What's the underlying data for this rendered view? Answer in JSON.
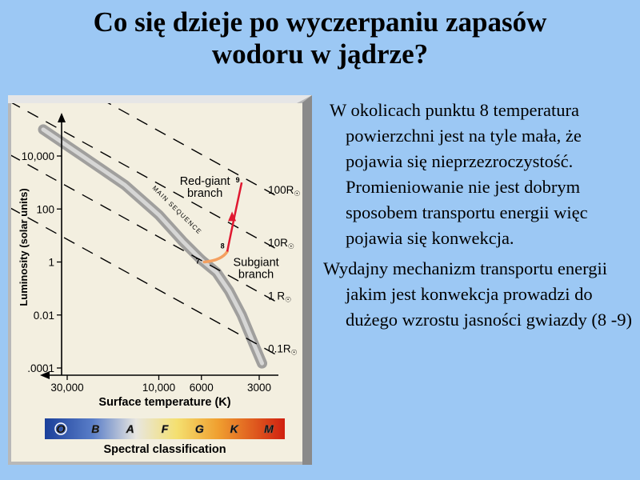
{
  "slide": {
    "title_line1": "Co się dzieje po wyczerpaniu zapasów",
    "title_line2": "wodoru w jądrze?",
    "paragraphs": [
      "W okolicach punktu 8 temperatura powierzchni jest na tyle mała, że pojawia się nieprzezroczystość. Promieniowanie nie jest dobrym sposobem transportu energii więc pojawia się konwekcja.",
      "Wydajny mechanizm transportu energii jakim jest konwekcja prowadzi do dużego wzrostu jasności gwiazdy (8 -9)"
    ]
  },
  "chart_data": {
    "type": "scatter",
    "ylabel": "Luminosity (solar units)",
    "xlabel": "Surface temperature (K)",
    "x_ticks": [
      "30,000",
      "10,000",
      "6000",
      "3000"
    ],
    "x_tick_values": [
      30000,
      10000,
      6000,
      3000
    ],
    "y_ticks": [
      "10,000",
      "100",
      "1",
      "0.01",
      ".0001"
    ],
    "y_tick_values": [
      10000,
      100,
      1,
      0.01,
      0.0001
    ],
    "x_axis": "reversed log",
    "y_axis": "log",
    "radius_lines": [
      {
        "label": "100R",
        "radius": 100
      },
      {
        "label": "10R",
        "radius": 10
      },
      {
        "label": "1 R",
        "radius": 1
      },
      {
        "label": "0.1R",
        "radius": 0.1
      }
    ],
    "radius_symbol": "☉",
    "main_sequence_label": "MAIN SEQUENCE",
    "main_sequence": [
      {
        "t": 40000,
        "l": 100000
      },
      {
        "t": 25000,
        "l": 10000
      },
      {
        "t": 15000,
        "l": 800
      },
      {
        "t": 10000,
        "l": 60
      },
      {
        "t": 7500,
        "l": 6
      },
      {
        "t": 6000,
        "l": 1.2
      },
      {
        "t": 5000,
        "l": 0.4
      },
      {
        "t": 4300,
        "l": 0.08
      },
      {
        "t": 3700,
        "l": 0.01
      },
      {
        "t": 3200,
        "l": 0.0008
      },
      {
        "t": 2900,
        "l": 0.00015
      }
    ],
    "track": {
      "points": [
        {
          "label": "7",
          "t": 5800,
          "l": 1
        },
        {
          "label": "8",
          "t": 4400,
          "l": 2.5
        },
        {
          "label": "9",
          "t": 3700,
          "l": 1000
        }
      ]
    },
    "annotations": [
      {
        "text": "Red-giant",
        "ref": "9"
      },
      {
        "text": "branch",
        "ref": "9"
      },
      {
        "text": "Subgiant",
        "ref": "8"
      },
      {
        "text": "branch",
        "ref": "8"
      }
    ],
    "spectral_classes": [
      "O",
      "B",
      "A",
      "F",
      "G",
      "K",
      "M"
    ],
    "spectral_label": "Spectral classification"
  },
  "colors": {
    "background": "#9cc8f4",
    "red_giant_track": "#e01830",
    "subgiant_track": "#f4a060",
    "main_sequence": "#a8a8a8"
  }
}
